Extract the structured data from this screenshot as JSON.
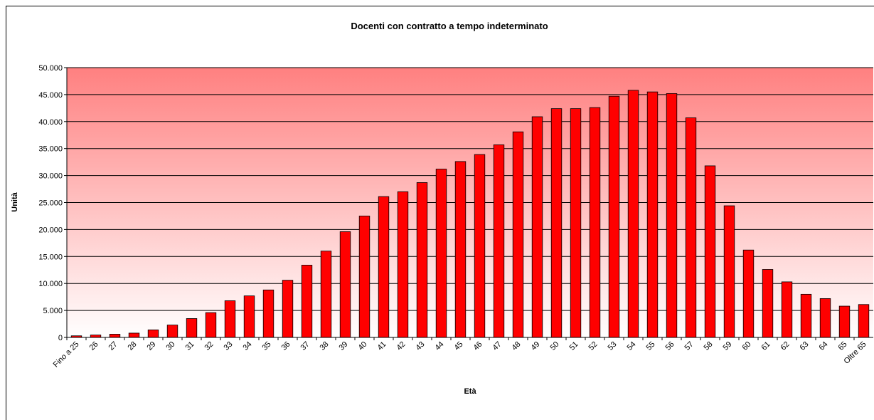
{
  "chart_data": {
    "type": "bar",
    "title": "Docenti con contratto a tempo indeterminato",
    "x_label": "Età",
    "y_label": "Unità",
    "categories": [
      "Fino a 25",
      "26",
      "27",
      "28",
      "29",
      "30",
      "31",
      "32",
      "33",
      "34",
      "35",
      "36",
      "37",
      "38",
      "39",
      "40",
      "41",
      "42",
      "43",
      "44",
      "45",
      "46",
      "47",
      "48",
      "49",
      "50",
      "51",
      "52",
      "53",
      "54",
      "55",
      "56",
      "57",
      "58",
      "59",
      "60",
      "61",
      "62",
      "63",
      "64",
      "65",
      "Oltre 65"
    ],
    "values": [
      300,
      450,
      600,
      800,
      1400,
      2300,
      3500,
      4600,
      6800,
      7700,
      8800,
      10600,
      13400,
      16000,
      19600,
      22500,
      26100,
      27000,
      28700,
      31200,
      32600,
      33900,
      35700,
      38100,
      40900,
      42400,
      42400,
      42600,
      44700,
      45800,
      45500,
      45200,
      40700,
      31800,
      24400,
      16200,
      12600,
      10300,
      8000,
      7200,
      5800,
      6100
    ],
    "color": "#ff0000",
    "ylim": [
      0,
      50000
    ],
    "yticks": [
      0,
      {
        "value": 5000,
        "label": "5.000"
      },
      {
        "value": 10000,
        "label": "10.000"
      },
      {
        "value": 15000,
        "label": "15.000"
      },
      {
        "value": 20000,
        "label": "20.000"
      },
      {
        "value": 25000,
        "label": "25.000"
      },
      {
        "value": 30000,
        "label": "30.000"
      },
      {
        "value": 35000,
        "label": "35.000"
      },
      {
        "value": 40000,
        "label": "40.000"
      },
      {
        "value": 45000,
        "label": "45.000"
      },
      {
        "value": 50000,
        "label": "50.000"
      }
    ],
    "grid": true
  }
}
